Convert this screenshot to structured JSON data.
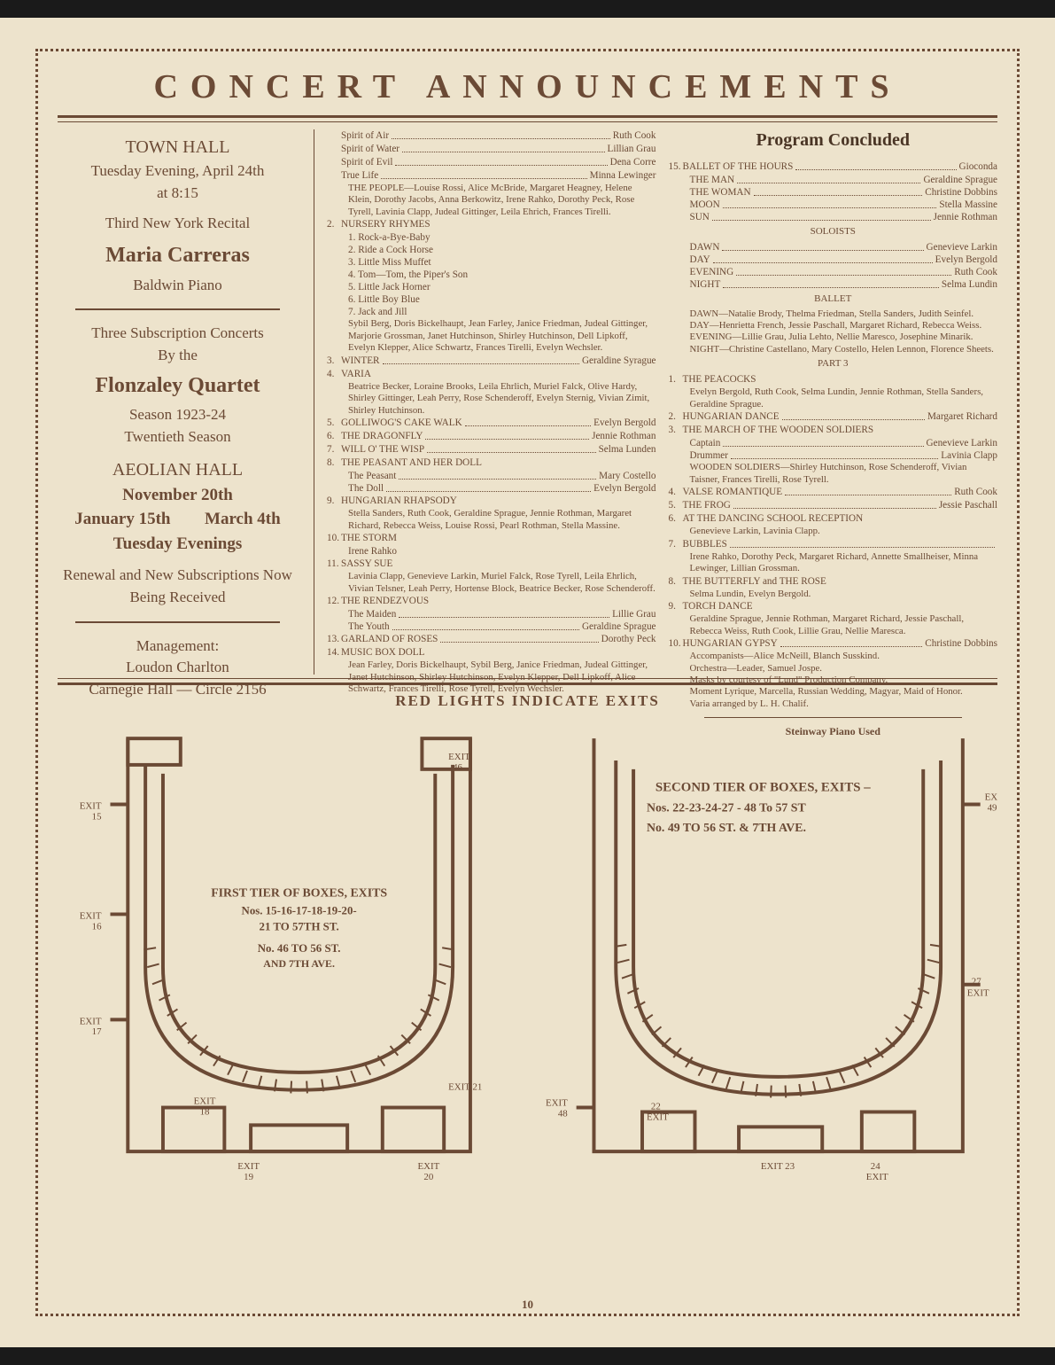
{
  "title": "CONCERT ANNOUNCEMENTS",
  "left": {
    "block1": {
      "venue": "TOWN HALL",
      "date": "Tuesday Evening, April 24th",
      "time": "at 8:15",
      "desc": "Third New York Recital",
      "name": "Maria Carreras",
      "sub": "Baldwin Piano"
    },
    "block2": {
      "line1": "Three Subscription Concerts",
      "line2": "By the",
      "name": "Flonzaley Quartet",
      "line3": "Season 1923-24",
      "line4": "Twentieth Season",
      "venue": "AEOLIAN HALL",
      "date1": "November 20th",
      "date2a": "January 15th",
      "date2b": "March 4th",
      "date3": "Tuesday Evenings",
      "note": "Renewal and New Subscriptions Now Being Received"
    },
    "block3": {
      "line1": "Management:",
      "line2": "Loudon Charlton",
      "line3": "Carnegie Hall — Circle 2156"
    }
  },
  "program": {
    "title": "Program Concluded",
    "col1": [
      {
        "type": "line",
        "label": "Spirit of Air",
        "val": "Ruth Cook"
      },
      {
        "type": "line",
        "label": "Spirit of Water",
        "val": "Lillian Grau"
      },
      {
        "type": "line",
        "label": "Spirit of Evil",
        "val": "Dena Corre"
      },
      {
        "type": "line",
        "label": "True Life",
        "val": "Minna Lewinger"
      },
      {
        "type": "detail",
        "text": "THE PEOPLE—Louise Rossi, Alice McBride, Margaret Heagney, Helene Klein, Dorothy Jacobs, Anna Berkowitz, Irene Rahko, Dorothy Peck, Rose Tyrell, Lavinia Clapp, Judeal Gittinger, Leila Ehrich, Frances Tirelli."
      },
      {
        "type": "num",
        "n": "2.",
        "label": "NURSERY RHYMES"
      },
      {
        "type": "sub",
        "text": "1. Rock-a-Bye-Baby"
      },
      {
        "type": "sub",
        "text": "2. Ride a Cock Horse"
      },
      {
        "type": "sub",
        "text": "3. Little Miss Muffet"
      },
      {
        "type": "sub",
        "text": "4. Tom—Tom, the Piper's Son"
      },
      {
        "type": "sub",
        "text": "5. Little Jack Horner"
      },
      {
        "type": "sub",
        "text": "6. Little Boy Blue"
      },
      {
        "type": "sub",
        "text": "7. Jack and Jill"
      },
      {
        "type": "detail",
        "text": "Sybil Berg, Doris Bickelhaupt, Jean Farley, Janice Friedman, Judeal Gittinger, Marjorie Grossman, Janet Hutchinson, Shirley Hutchinson, Dell Lipkoff, Evelyn Klepper, Alice Schwartz, Frances Tirelli, Evelyn Wechsler."
      },
      {
        "type": "numline",
        "n": "3.",
        "label": "WINTER",
        "val": "Geraldine Syrague"
      },
      {
        "type": "num",
        "n": "4.",
        "label": "VARIA"
      },
      {
        "type": "detail",
        "text": "Beatrice Becker, Loraine Brooks, Leila Ehrlich, Muriel Falck, Olive Hardy, Shirley Gittinger, Leah Perry, Rose Schenderoff, Evelyn Sternig, Vivian Zimit, Shirley Hutchinson."
      },
      {
        "type": "numline",
        "n": "5.",
        "label": "GOLLIWOG'S CAKE WALK",
        "val": "Evelyn Bergold"
      },
      {
        "type": "numline",
        "n": "6.",
        "label": "THE DRAGONFLY",
        "val": "Jennie Rothman"
      },
      {
        "type": "numline",
        "n": "7.",
        "label": "WILL O' THE WISP",
        "val": "Selma Lunden"
      },
      {
        "type": "num",
        "n": "8.",
        "label": "THE PEASANT AND HER DOLL"
      },
      {
        "type": "subline",
        "label": "The Peasant",
        "val": "Mary Costello"
      },
      {
        "type": "subline",
        "label": "The Doll",
        "val": "Evelyn Bergold"
      },
      {
        "type": "num",
        "n": "9.",
        "label": "HUNGARIAN RHAPSODY"
      },
      {
        "type": "detail",
        "text": "Stella Sanders, Ruth Cook, Geraldine Sprague, Jennie Rothman, Margaret Richard, Rebecca Weiss, Louise Rossi, Pearl Rothman, Stella Massine."
      },
      {
        "type": "num",
        "n": "10.",
        "label": "THE STORM"
      },
      {
        "type": "sub",
        "text": "Irene Rahko"
      },
      {
        "type": "num",
        "n": "11.",
        "label": "SASSY SUE"
      },
      {
        "type": "detail",
        "text": "Lavinia Clapp, Genevieve Larkin, Muriel Falck, Rose Tyrell, Leila Ehrlich, Vivian Telsner, Leah Perry, Hortense Block, Beatrice Becker, Rose Schenderoff."
      },
      {
        "type": "num",
        "n": "12.",
        "label": "THE RENDEZVOUS"
      },
      {
        "type": "subline",
        "label": "The Maiden",
        "val": "Lillie Grau"
      },
      {
        "type": "subline",
        "label": "The Youth",
        "val": "Geraldine Sprague"
      },
      {
        "type": "numline",
        "n": "13.",
        "label": "GARLAND OF ROSES",
        "val": "Dorothy Peck"
      },
      {
        "type": "num",
        "n": "14.",
        "label": "MUSIC BOX DOLL"
      },
      {
        "type": "detail",
        "text": "Jean Farley, Doris Bickelhaupt, Sybil Berg, Janice Friedman, Judeal Gittinger, Janet Hutchinson, Shirley Hutchinson, Evelyn Klepper, Dell Lipkoff, Alice Schwartz, Frances Tirelli, Rose Tyrell, Evelyn Wechsler."
      }
    ],
    "col2": [
      {
        "type": "numline",
        "n": "15.",
        "label": "BALLET OF THE HOURS",
        "val": "Gioconda"
      },
      {
        "type": "subline",
        "label": "THE MAN",
        "val": "Geraldine Sprague"
      },
      {
        "type": "subline",
        "label": "THE WOMAN",
        "val": "Christine Dobbins"
      },
      {
        "type": "subline",
        "label": "MOON",
        "val": "Stella Massine"
      },
      {
        "type": "subline",
        "label": "SUN",
        "val": "Jennie Rothman"
      },
      {
        "type": "center",
        "text": "SOLOISTS"
      },
      {
        "type": "subline",
        "label": "DAWN",
        "val": "Genevieve Larkin"
      },
      {
        "type": "subline",
        "label": "DAY",
        "val": "Evelyn Bergold"
      },
      {
        "type": "subline",
        "label": "EVENING",
        "val": "Ruth Cook"
      },
      {
        "type": "subline",
        "label": "NIGHT",
        "val": "Selma Lundin"
      },
      {
        "type": "center",
        "text": "BALLET"
      },
      {
        "type": "detail",
        "text": "DAWN—Natalie Brody, Thelma Friedman, Stella Sanders, Judith Seinfel."
      },
      {
        "type": "detail",
        "text": "DAY—Henrietta French, Jessie Paschall, Margaret Richard, Rebecca Weiss."
      },
      {
        "type": "detail",
        "text": "EVENING—Lillie Grau, Julia Lehto, Nellie Maresco, Josephine Minarik."
      },
      {
        "type": "detail",
        "text": "NIGHT—Christine Castellano, Mary Costello, Helen Lennon, Florence Sheets."
      },
      {
        "type": "center",
        "text": "PART 3"
      },
      {
        "type": "num",
        "n": "1.",
        "label": "THE PEACOCKS"
      },
      {
        "type": "detail",
        "text": "Evelyn Bergold, Ruth Cook, Selma Lundin, Jennie Rothman, Stella Sanders, Geraldine Sprague."
      },
      {
        "type": "numline",
        "n": "2.",
        "label": "HUNGARIAN DANCE",
        "val": "Margaret Richard"
      },
      {
        "type": "num",
        "n": "3.",
        "label": "THE MARCH OF THE WOODEN SOLDIERS"
      },
      {
        "type": "subline",
        "label": "Captain",
        "val": "Genevieve Larkin"
      },
      {
        "type": "subline",
        "label": "Drummer",
        "val": "Lavinia Clapp"
      },
      {
        "type": "detail",
        "text": "WOODEN SOLDIERS—Shirley Hutchinson, Rose Schenderoff, Vivian Taisner, Frances Tirelli, Rose Tyrell."
      },
      {
        "type": "numline",
        "n": "4.",
        "label": "VALSE ROMANTIQUE",
        "val": "Ruth Cook"
      },
      {
        "type": "numline",
        "n": "5.",
        "label": "THE FROG",
        "val": "Jessie Paschall"
      },
      {
        "type": "num",
        "n": "6.",
        "label": "AT THE DANCING SCHOOL RECEPTION"
      },
      {
        "type": "detail",
        "text": "Genevieve Larkin, Lavinia Clapp."
      },
      {
        "type": "numline",
        "n": "7.",
        "label": "BUBBLES",
        "val": ""
      },
      {
        "type": "detail",
        "text": "Irene Rahko, Dorothy Peck, Margaret Richard, Annette Smallheiser, Minna Lewinger, Lillian Grossman."
      },
      {
        "type": "num",
        "n": "8.",
        "label": "THE BUTTERFLY and THE ROSE"
      },
      {
        "type": "detail",
        "text": "Selma Lundin, Evelyn Bergold."
      },
      {
        "type": "num",
        "n": "9.",
        "label": "TORCH DANCE"
      },
      {
        "type": "detail",
        "text": "Geraldine Sprague, Jennie Rothman, Margaret Richard, Jessie Paschall, Rebecca Weiss, Ruth Cook, Lillie Grau, Nellie Maresca."
      },
      {
        "type": "numline",
        "n": "10.",
        "label": "HUNGARIAN GYPSY",
        "val": "Christine Dobbins"
      },
      {
        "type": "detail",
        "text": "Accompanists—Alice McNeill, Blanch Susskind."
      },
      {
        "type": "detail",
        "text": "Orchestra—Leader, Samuel Jospe."
      },
      {
        "type": "detail",
        "text": "Masks by courtesy of \"Lund\" Production Company."
      },
      {
        "type": "detail",
        "text": "Moment Lyrique, Marcella, Russian Wedding, Magyar, Maid of Honor."
      },
      {
        "type": "detail",
        "text": "Varia arranged by L. H. Chalif."
      }
    ],
    "steinway": "Steinway Piano Used"
  },
  "exits": {
    "title": "RED LIGHTS INDICATE EXITS",
    "diagram1": {
      "label_title": "FIRST TIER OF BOXES, EXITS",
      "label_line1": "Nos. 15-16-17-18-19-20-",
      "label_line2": "21 TO 57TH ST.",
      "label_line3": "No. 46 TO 56 ST.",
      "label_line4": "AND 7TH AVE.",
      "exits": [
        "EXIT 15",
        "EXIT 16",
        "EXIT 17",
        "EXIT 18",
        "EXIT 19",
        "EXIT 20",
        "EXIT 21",
        "EXIT 46"
      ]
    },
    "diagram2": {
      "label_title": "SECOND TIER OF BOXES, EXITS –",
      "label_line1": "Nos. 22-23-24-27 - 48 To 57 ST",
      "label_line2": "No. 49 TO 56 ST. & 7TH AVE.",
      "exits": [
        "EXIT 22",
        "EXIT 23",
        "EXIT 24",
        "EXIT 27",
        "EXIT 48",
        "EXIT 49"
      ]
    }
  },
  "page_num": "10",
  "colors": {
    "ink": "#6b4a35",
    "paper": "#ede3cc"
  }
}
